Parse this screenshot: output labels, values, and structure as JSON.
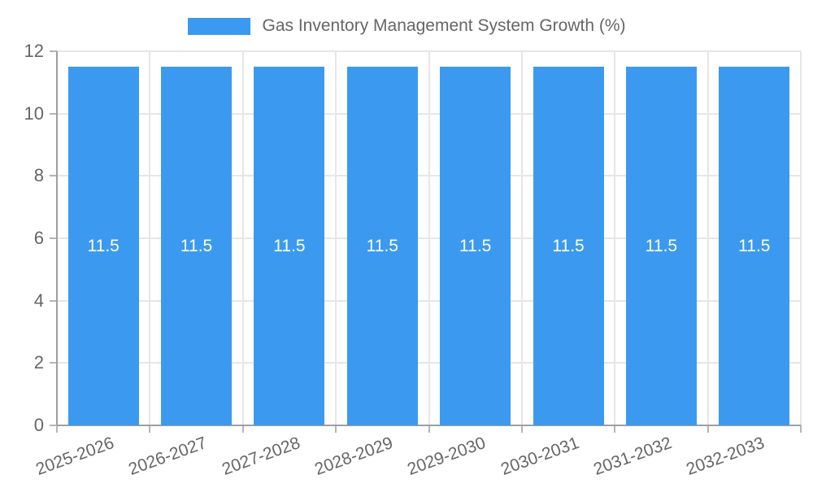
{
  "chart_data": {
    "type": "bar",
    "title": "Gas Inventory Management System Growth (%)",
    "categories": [
      "2025-2026",
      "2026-2027",
      "2027-2028",
      "2028-2029",
      "2029-2030",
      "2030-2031",
      "2031-2032",
      "2032-2033"
    ],
    "series": [
      {
        "name": "Gas Inventory Management System Growth (%)",
        "values": [
          11.5,
          11.5,
          11.5,
          11.5,
          11.5,
          11.5,
          11.5,
          11.5
        ]
      }
    ],
    "value_labels": [
      "11.5",
      "11.5",
      "11.5",
      "11.5",
      "11.5",
      "11.5",
      "11.5",
      "11.5"
    ],
    "xlabel": "",
    "ylabel": "",
    "ylim": [
      0,
      12
    ],
    "yticks": [
      0,
      2,
      4,
      6,
      8,
      10,
      12
    ],
    "grid": true,
    "legend_position": "top",
    "colors": {
      "bar": "#3B9AF0",
      "value_label": "#ffffff",
      "text": "#666666",
      "grid": "#e6e6e6",
      "axis": "#9f9f9f",
      "tick": "#b5b5b5",
      "background": "#ffffff"
    }
  }
}
